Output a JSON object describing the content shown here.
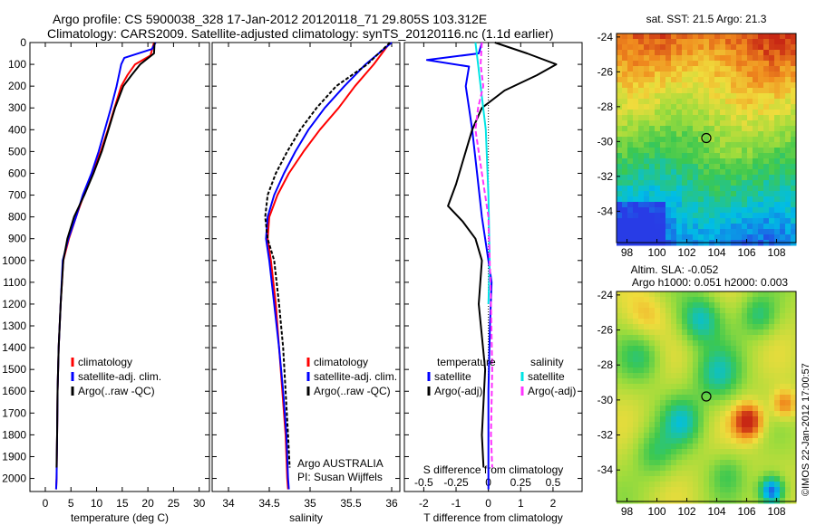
{
  "header": {
    "line1": "Argo profile: CS 5900038_328 17-Jan-2012 20120118_71 29.805S 103.312E",
    "line2": "Climatology: CARS2009. Satellite-adjusted climatology: synTS_20120116.nc (1.1d earlier)"
  },
  "credit": "©IMOS 22-Jan-2012 17:00:57",
  "colors": {
    "climatology": "#ff0000",
    "satellite": "#0000ff",
    "argo": "#000000",
    "cyan": "#00e5e5",
    "magenta": "#ff33ff"
  },
  "chart_data": [
    {
      "type": "line",
      "name": "temperature",
      "xlabel": "temperature (deg C)",
      "ylabel": "",
      "xlim": [
        -3,
        32
      ],
      "ylim": [
        2060,
        0
      ],
      "xticks": [
        0,
        5,
        10,
        15,
        20,
        25,
        30
      ],
      "yticks": [
        0,
        100,
        200,
        300,
        400,
        500,
        600,
        700,
        800,
        900,
        1000,
        1100,
        1200,
        1300,
        1400,
        1500,
        1600,
        1700,
        1800,
        1900,
        2000
      ],
      "legend": [
        "climatology",
        "satellite-adj. clim.",
        "Argo(..raw -QC)"
      ],
      "series": [
        {
          "name": "climatology",
          "color": "#ff0000",
          "x": [
            21.2,
            20.5,
            17.5,
            16,
            14.8,
            13.5,
            12.2,
            10.8,
            9.2,
            7.5,
            6.0,
            4.6,
            3.5,
            3.0,
            2.6,
            2.4,
            2.3,
            2.2,
            2.1
          ],
          "y": [
            0,
            60,
            100,
            150,
            200,
            300,
            400,
            500,
            600,
            700,
            800,
            900,
            1000,
            1200,
            1400,
            1600,
            1800,
            2000,
            2050
          ]
        },
        {
          "name": "satellite-adj. clim.",
          "color": "#0000ff",
          "x": [
            21.5,
            20.8,
            15.4,
            14.8,
            13.9,
            12.8,
            11.6,
            10.4,
            9.0,
            7.3,
            6.0,
            4.5,
            3.4,
            3.0,
            2.6,
            2.4,
            2.3,
            2.2,
            2.1
          ],
          "y": [
            0,
            30,
            70,
            100,
            200,
            300,
            400,
            500,
            600,
            700,
            800,
            900,
            1000,
            1200,
            1400,
            1600,
            1800,
            2000,
            2050
          ]
        },
        {
          "name": "Argo(..raw -QC)",
          "color": "#000000",
          "x": [
            21.3,
            21.2,
            18.5,
            16.8,
            15.2,
            13.6,
            12.3,
            11.0,
            9.4,
            7.6,
            5.6,
            4.3,
            3.5,
            3.0,
            2.6,
            2.4,
            2.3,
            2.2
          ],
          "y": [
            0,
            50,
            100,
            150,
            200,
            300,
            400,
            500,
            600,
            700,
            800,
            900,
            1000,
            1200,
            1400,
            1600,
            1800,
            1950
          ]
        }
      ]
    },
    {
      "type": "line",
      "name": "salinity",
      "xlabel": "salinity",
      "ylabel": "",
      "xlim": [
        33.8,
        36.1
      ],
      "ylim": [
        2060,
        0
      ],
      "xticks": [
        34,
        34.5,
        35,
        35.5,
        36
      ],
      "xtick_labels": [
        "34",
        "34.5",
        "35",
        "35.5",
        "36"
      ],
      "legend": [
        "climatology",
        "satellite-adj. clim.",
        "Argo(..raw -QC)"
      ],
      "annotations": [
        "Argo AUSTRALIA",
        "PI: Susan Wijffels"
      ],
      "series": [
        {
          "name": "climatology",
          "color": "#ff0000",
          "x": [
            35.98,
            35.78,
            35.55,
            35.35,
            35.12,
            34.92,
            34.74,
            34.6,
            34.5,
            34.48,
            34.52,
            34.58,
            34.62,
            34.66,
            34.7,
            34.72,
            34.73
          ],
          "y": [
            0,
            100,
            200,
            300,
            400,
            500,
            600,
            700,
            800,
            900,
            1000,
            1200,
            1400,
            1600,
            1800,
            2000,
            2050
          ]
        },
        {
          "name": "satellite-adj. clim.",
          "color": "#0000ff",
          "x": [
            36.0,
            35.68,
            35.42,
            35.18,
            34.98,
            34.82,
            34.68,
            34.56,
            34.48,
            34.46,
            34.5,
            34.56,
            34.62,
            34.67,
            34.71,
            34.73,
            34.74
          ],
          "y": [
            0,
            100,
            200,
            300,
            400,
            500,
            600,
            700,
            800,
            900,
            1000,
            1200,
            1400,
            1600,
            1800,
            2000,
            2050
          ]
        },
        {
          "name": "Argo(..raw -QC)",
          "color": "#000000",
          "x": [
            35.98,
            35.7,
            35.32,
            35.08,
            34.88,
            34.72,
            34.58,
            34.48,
            34.45,
            34.48,
            34.56,
            34.62,
            34.67,
            34.7,
            34.73,
            34.75
          ],
          "y": [
            0,
            100,
            200,
            300,
            400,
            500,
            600,
            700,
            800,
            900,
            1000,
            1200,
            1400,
            1600,
            1800,
            1950
          ]
        }
      ]
    },
    {
      "type": "line",
      "name": "difference",
      "xlabel": "T difference from climatology",
      "xlabel_top": "S difference from climatology",
      "xlim": [
        -2.6,
        2.9
      ],
      "ylim": [
        2060,
        0
      ],
      "xticks": [
        -2,
        -1,
        0,
        1,
        2
      ],
      "sticks": [
        -0.5,
        -0.25,
        0,
        0.25,
        0.5
      ],
      "stick_labels": [
        "-0.5",
        "-0.25",
        "0",
        "0.25",
        "0.5"
      ],
      "legend_groups": {
        "temperature": [
          "satellite",
          "Argo(-adj)"
        ],
        "salinity": [
          "satellite",
          "Argo(-adj)"
        ]
      },
      "series": [
        {
          "name": "temperature satellite",
          "color": "#0000ff",
          "x": [
            -0.2,
            -0.3,
            -1.9,
            -0.6,
            -0.7,
            -0.6,
            -0.5,
            -0.35,
            -0.2,
            -0.1,
            0,
            0.1,
            0.05,
            0,
            0,
            0
          ],
          "y": [
            0,
            50,
            80,
            110,
            200,
            300,
            400,
            600,
            800,
            900,
            1000,
            1100,
            1300,
            1600,
            1900,
            2050
          ]
        },
        {
          "name": "temperature Argo(-adj)",
          "color": "#000000",
          "x": [
            0.2,
            1.2,
            2.1,
            1.5,
            0.5,
            -0.2,
            -0.5,
            -0.8,
            -1.0,
            -1.25,
            -0.8,
            -0.4,
            -0.2,
            -0.3,
            -0.1,
            -0.2,
            -0.15
          ],
          "y": [
            0,
            50,
            100,
            150,
            220,
            300,
            400,
            550,
            650,
            750,
            820,
            900,
            1000,
            1200,
            1500,
            1800,
            1950
          ]
        },
        {
          "name": "salinity satellite",
          "color": "#00e5e5",
          "x": [
            -0.1,
            -0.08,
            -0.06,
            -0.02,
            0.0,
            0.01,
            0.0
          ],
          "y": [
            0,
            100,
            200,
            400,
            700,
            1000,
            1200
          ]
        },
        {
          "name": "salinity Argo(-adj)",
          "color": "#ff33ff",
          "x": [
            -0.05,
            -0.06,
            -0.04,
            -0.08,
            -0.1,
            -0.05,
            0,
            0.01,
            0.02,
            0.03,
            0.02,
            0.03
          ],
          "y": [
            0,
            100,
            200,
            300,
            400,
            600,
            800,
            1000,
            1200,
            1500,
            1800,
            1950
          ]
        }
      ]
    },
    {
      "type": "heatmap",
      "name": "sst map",
      "title": "sat. SST: 21.5  Argo: 21.3",
      "xlim": [
        97.3,
        109.3
      ],
      "ylim": [
        -35.8,
        -23.8
      ],
      "xticks": [
        98,
        100,
        102,
        104,
        106,
        108
      ],
      "yticks": [
        -24,
        -26,
        -28,
        -30,
        -32,
        -34
      ],
      "marker": {
        "lon": 103.3,
        "lat": -29.8
      }
    },
    {
      "type": "heatmap",
      "name": "sla map",
      "title_lines": [
        "Altim. SLA: -0.052",
        "Argo h1000: 0.051 h2000: 0.003"
      ],
      "xlim": [
        97.3,
        109.3
      ],
      "ylim": [
        -35.8,
        -23.8
      ],
      "xticks": [
        98,
        100,
        102,
        104,
        106,
        108
      ],
      "yticks": [
        -24,
        -26,
        -28,
        -30,
        -32,
        -34
      ],
      "marker": {
        "lon": 103.3,
        "lat": -29.8
      }
    }
  ]
}
